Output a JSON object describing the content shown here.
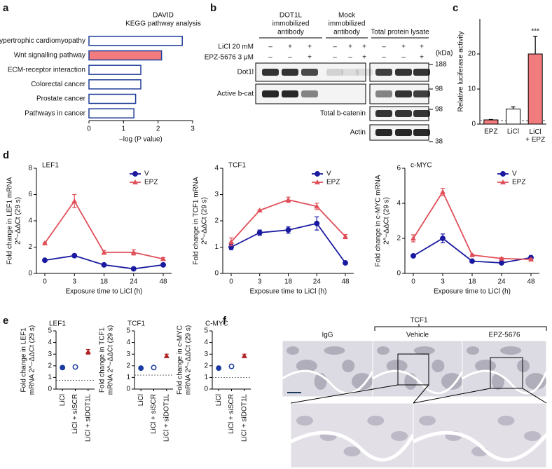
{
  "panel_labels": {
    "a": "a",
    "b": "b",
    "c": "c",
    "d": "d",
    "e": "e",
    "f": "f"
  },
  "chart_data": [
    {
      "type": "hbar",
      "title": [
        "DAVID",
        "KEGG pathway analysis"
      ],
      "categories": [
        "Hypertrophic cardiomyopathy",
        "Wnt signalling pathway",
        "ECM-receptor interaction",
        "Colorectal cancer",
        "Prostate cancer",
        "Pathways in cancer"
      ],
      "values": [
        2.7,
        2.1,
        1.5,
        1.5,
        1.35,
        1.3
      ],
      "color": "#ffffff",
      "edge_color": "#1f3d99",
      "highlight": 1,
      "highlight_color": "#f27b7e",
      "xlabel": "–log (P value)",
      "xlim": [
        0,
        3
      ],
      "xticks": [
        0,
        1,
        2,
        3
      ]
    },
    {
      "type": "bar",
      "ylabel": "Relative luciferase activity",
      "categories": [
        "EPZ",
        "LiCl",
        "LiCl + EPZ"
      ],
      "values": [
        1.2,
        4.3,
        20
      ],
      "errors": [
        0.1,
        0.6,
        5
      ],
      "colors": [
        "#f27b7e",
        "#ffffff",
        "#f27b7e"
      ],
      "reference_line": 1,
      "annotation": "***",
      "ylim": [
        0,
        30
      ],
      "yticks": [
        0,
        10,
        20
      ]
    },
    {
      "type": "line",
      "title": "LEF1",
      "ylabel": [
        "Fold change in LEF1 mRNA",
        "2^−ΔΔCt (29 s)"
      ],
      "xlabel": "Exposure time to LiCl (h)",
      "categories": [
        "0",
        "3",
        "18",
        "24",
        "48"
      ],
      "series": [
        {
          "name": "V",
          "color": "#1a1aa0",
          "marker": "circle",
          "values": [
            1.0,
            1.35,
            0.65,
            0.35,
            0.65
          ],
          "errors": [
            0.05,
            0.1,
            0.05,
            0.05,
            0.05
          ]
        },
        {
          "name": "EPZ",
          "color": "#e0505a",
          "marker": "triangle",
          "values": [
            2.3,
            5.5,
            1.6,
            1.6,
            1.1
          ],
          "errors": [
            0.05,
            0.5,
            0.15,
            0.2,
            0.1
          ]
        }
      ],
      "ylim": [
        0,
        8
      ],
      "yticks": [
        0,
        2,
        4,
        6,
        8
      ],
      "legend": "upper right"
    },
    {
      "type": "line",
      "title": "TCF1",
      "ylabel": [
        "Fold change in TCF1 mRNA",
        "2^−ΔΔCt (29 s)"
      ],
      "xlabel": "Exposure time to LiCl (h)",
      "categories": [
        "0",
        "3",
        "18",
        "24",
        "48"
      ],
      "series": [
        {
          "name": "V",
          "color": "#1a1aa0",
          "marker": "circle",
          "values": [
            1.0,
            1.55,
            1.65,
            1.9,
            0.4
          ],
          "errors": [
            0.1,
            0.1,
            0.12,
            0.25,
            0.02
          ]
        },
        {
          "name": "EPZ",
          "color": "#e0505a",
          "marker": "triangle",
          "values": [
            1.2,
            2.4,
            2.8,
            2.55,
            1.4
          ],
          "errors": [
            0.15,
            0.02,
            0.1,
            0.12,
            0.08
          ]
        }
      ],
      "ylim": [
        0,
        4
      ],
      "yticks": [
        0,
        1,
        2,
        3,
        4
      ],
      "legend": "upper right"
    },
    {
      "type": "line",
      "title": "c-MYC",
      "ylabel": [
        "Fold change in c-MYC mRNA",
        "2^−ΔΔCt (29 s)"
      ],
      "xlabel": "Exposure time to LiCl (h)",
      "categories": [
        "0",
        "3",
        "18",
        "24",
        "48"
      ],
      "series": [
        {
          "name": "V",
          "color": "#1a1aa0",
          "marker": "circle",
          "values": [
            1.0,
            2.0,
            0.7,
            0.6,
            0.9
          ],
          "errors": [
            0.05,
            0.25,
            0.05,
            0.05,
            0.1
          ]
        },
        {
          "name": "EPZ",
          "color": "#e0505a",
          "marker": "triangle",
          "values": [
            2.0,
            4.65,
            1.05,
            0.85,
            0.8
          ],
          "errors": [
            0.2,
            0.2,
            0.05,
            0.05,
            0.05
          ]
        }
      ],
      "ylim": [
        0,
        6
      ],
      "yticks": [
        0,
        2,
        4,
        6
      ],
      "legend": "upper right"
    },
    {
      "type": "dot",
      "title": "LEF1",
      "ylabel": [
        "Fold change in LEF1",
        "mRNA 2^−ΔΔCt (29 s)"
      ],
      "categories": [
        "LiCl",
        "LiCl + siSCR",
        "LiCl + siDOT1L"
      ],
      "values": [
        1.85,
        1.9,
        3.2
      ],
      "errors": [
        0.05,
        0.08,
        0.2
      ],
      "colors": [
        "#1a3aa0",
        "#1a3aa0",
        "#b02020"
      ],
      "markers": [
        "circle",
        "open-circle",
        "triangle"
      ],
      "reference_line": 0.75,
      "ylim": [
        0,
        5
      ],
      "yticks": [
        0,
        1,
        2,
        3,
        4,
        5
      ]
    },
    {
      "type": "dot",
      "title": "TCF1",
      "ylabel": [
        "Fold change in TCF1",
        "mRNA 2^−ΔΔCt (29 s)"
      ],
      "categories": [
        "LiCl",
        "LiCl + siSCR",
        "LiCl + siDOT1L"
      ],
      "values": [
        1.8,
        1.85,
        2.85
      ],
      "errors": [
        0.05,
        0.1,
        0.15
      ],
      "colors": [
        "#1a3aa0",
        "#1a3aa0",
        "#b02020"
      ],
      "markers": [
        "circle",
        "open-circle",
        "triangle"
      ],
      "reference_line": 1.2,
      "ylim": [
        0,
        5
      ],
      "yticks": [
        0,
        1,
        2,
        3,
        4,
        5
      ]
    },
    {
      "type": "dot",
      "title": "C-MYC",
      "ylabel": [
        "Fold change in c-MYC",
        "mRNA 2^−ΔΔCt (29 s)"
      ],
      "categories": [
        "LiCl",
        "LiCl + siSCR",
        "LiCl + siDOT1L"
      ],
      "values": [
        1.8,
        1.95,
        2.85
      ],
      "errors": [
        0.1,
        0.15,
        0.15
      ],
      "colors": [
        "#1a3aa0",
        "#1a3aa0",
        "#b02020"
      ],
      "markers": [
        "circle",
        "open-circle",
        "triangle"
      ],
      "reference_line": 1.0,
      "ylim": [
        0,
        5
      ],
      "yticks": [
        0,
        1,
        2,
        3,
        4,
        5
      ]
    }
  ],
  "blot": {
    "groups": [
      [
        "DOT1L",
        "immobilized",
        "antibody"
      ],
      [
        "Mock",
        "immobilized",
        "antibody"
      ],
      [
        "Total protein lysate"
      ]
    ],
    "treatments": [
      {
        "name": "LiCl 20 mM",
        "signs": [
          "–",
          "+",
          "+",
          "–",
          "+",
          "+",
          "–",
          "+",
          "+"
        ]
      },
      {
        "name": "EPZ-5676 3 μM",
        "signs": [
          "–",
          "–",
          "+",
          "–",
          "–",
          "+",
          "–",
          "–",
          "+"
        ]
      }
    ],
    "unit": "(kDa)",
    "markers": [
      188,
      98,
      98,
      38
    ],
    "rows": [
      "Dot1l",
      "Active b-cat",
      "Total b-catenin",
      "Actin"
    ]
  },
  "histology": {
    "stain": "TCF1",
    "panels": [
      "IgG",
      "Vehicle",
      "EPZ-5676"
    ]
  }
}
